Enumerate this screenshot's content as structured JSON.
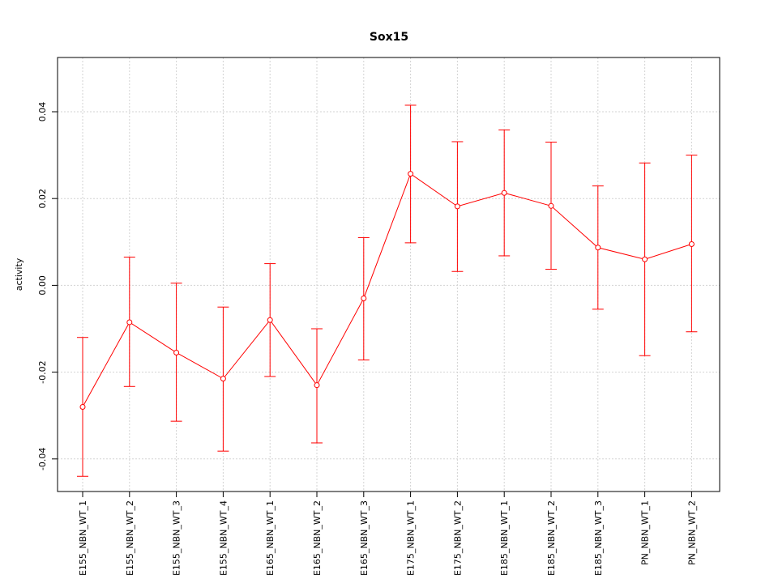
{
  "chart_data": {
    "type": "line",
    "title": "Sox15",
    "xlabel": "",
    "ylabel": "activity",
    "ylim": [
      -0.0475,
      0.0525
    ],
    "grid": true,
    "categories": [
      "E155_NBN_WT_1",
      "E155_NBN_WT_2",
      "E155_NBN_WT_3",
      "E155_NBN_WT_4",
      "E165_NBN_WT_1",
      "E165_NBN_WT_2",
      "E165_NBN_WT_3",
      "E175_NBN_WT_1",
      "E175_NBN_WT_2",
      "E185_NBN_WT_1",
      "E185_NBN_WT_2",
      "E185_NBN_WT_3",
      "PN_NBN_WT_1",
      "PN_NBN_WT_2"
    ],
    "y_ticks": [
      -0.04,
      -0.02,
      0.0,
      0.02,
      0.04
    ],
    "y_tick_labels": [
      "-0.04",
      "-0.02",
      "0.00",
      "0.02",
      "0.04"
    ],
    "series": [
      {
        "color": "#ff0000",
        "values": [
          -0.028,
          -0.0085,
          -0.0155,
          -0.0215,
          -0.008,
          -0.023,
          -0.003,
          0.0257,
          0.0182,
          0.0213,
          0.0183,
          0.0087,
          0.006,
          0.0095
        ],
        "lower": [
          -0.044,
          -0.0233,
          -0.0313,
          -0.0382,
          -0.021,
          -0.0363,
          -0.0172,
          0.0098,
          0.0032,
          0.0068,
          0.0037,
          -0.0055,
          -0.0162,
          -0.0107
        ],
        "upper": [
          -0.012,
          0.0065,
          0.0005,
          -0.005,
          0.005,
          -0.01,
          0.011,
          0.0415,
          0.0331,
          0.0358,
          0.033,
          0.0229,
          0.0282,
          0.03
        ]
      }
    ]
  }
}
